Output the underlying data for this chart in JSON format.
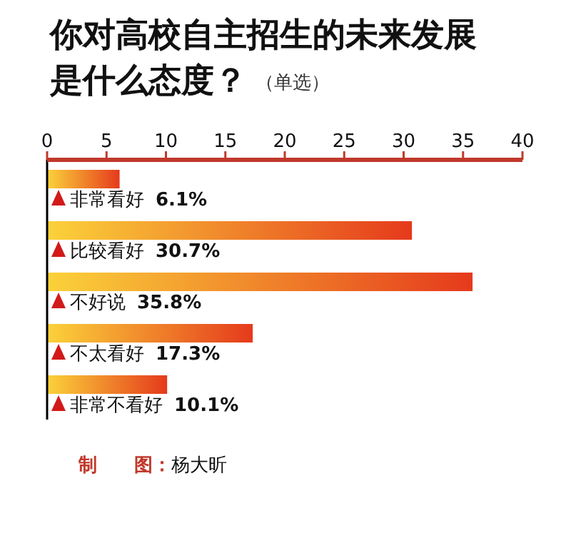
{
  "chart_data": {
    "type": "bar",
    "orientation": "horizontal",
    "title": "你对高校自主招生的未来发展是什么态度？",
    "subtitle": "（单选）",
    "categories": [
      "非常看好",
      "比较看好",
      "不好说",
      "不太看好",
      "非常不看好"
    ],
    "values": [
      6.1,
      30.7,
      35.8,
      17.3,
      10.1
    ],
    "value_labels": [
      "6.1%",
      "30.7%",
      "35.8%",
      "17.3%",
      "10.1%"
    ],
    "color": "#e53a1c",
    "xlim": [
      0,
      40
    ],
    "xticks": [
      0,
      5,
      10,
      15,
      20,
      25,
      30,
      35,
      40
    ],
    "annotations": [
      "制　　图：杨大昕"
    ]
  }
}
